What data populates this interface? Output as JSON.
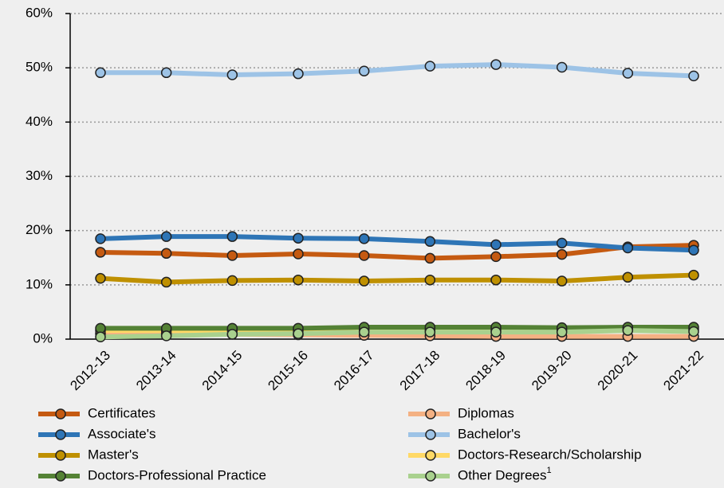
{
  "chart_data": {
    "type": "line",
    "categories": [
      "2012-13",
      "2013-14",
      "2014-15",
      "2015-16",
      "2016-17",
      "2017-18",
      "2018-19",
      "2019-20",
      "2020-21",
      "2021-22"
    ],
    "ylim": [
      0,
      60
    ],
    "yticks": [
      {
        "value": 0,
        "label": "0%"
      },
      {
        "value": 10,
        "label": "10%"
      },
      {
        "value": 20,
        "label": "20%"
      },
      {
        "value": 30,
        "label": "30%"
      },
      {
        "value": 40,
        "label": "40%"
      },
      {
        "value": 50,
        "label": "50%"
      },
      {
        "value": 60,
        "label": "60%"
      }
    ],
    "grid": true,
    "series": [
      {
        "name": "Certificates",
        "color": "#c55a11",
        "values": [
          16.0,
          15.8,
          15.4,
          15.7,
          15.4,
          14.9,
          15.2,
          15.6,
          17.0,
          17.3
        ]
      },
      {
        "name": "Diplomas",
        "color": "#f4b183",
        "values": [
          1.0,
          1.0,
          0.9,
          0.8,
          0.7,
          0.6,
          0.5,
          0.5,
          0.5,
          0.5
        ]
      },
      {
        "name": "Associate's",
        "color": "#2e75b6",
        "values": [
          18.5,
          18.9,
          18.9,
          18.6,
          18.5,
          18.0,
          17.4,
          17.7,
          16.8,
          16.4
        ]
      },
      {
        "name": "Bachelor's",
        "color": "#9dc3e6",
        "values": [
          49.1,
          49.1,
          48.7,
          48.9,
          49.4,
          50.3,
          50.6,
          50.1,
          49.0,
          48.5
        ]
      },
      {
        "name": "Master's",
        "color": "#bf9000",
        "values": [
          11.2,
          10.5,
          10.8,
          10.9,
          10.7,
          10.9,
          10.9,
          10.7,
          11.4,
          11.8
        ]
      },
      {
        "name": "Doctors-Research/Scholarship",
        "color": "#ffd966",
        "values": [
          1.6,
          1.6,
          1.6,
          1.6,
          1.7,
          1.7,
          1.7,
          1.7,
          1.8,
          1.8
        ]
      },
      {
        "name": "Doctors-Professional Practice",
        "color": "#548235",
        "values": [
          2.0,
          2.0,
          2.0,
          2.0,
          2.2,
          2.2,
          2.2,
          2.1,
          2.2,
          2.2
        ]
      },
      {
        "name": "Other Degrees",
        "name_superscript": "1",
        "color": "#a9d18e",
        "values": [
          0.4,
          0.6,
          0.9,
          1.0,
          1.3,
          1.3,
          1.3,
          1.3,
          1.6,
          1.4
        ]
      }
    ]
  }
}
